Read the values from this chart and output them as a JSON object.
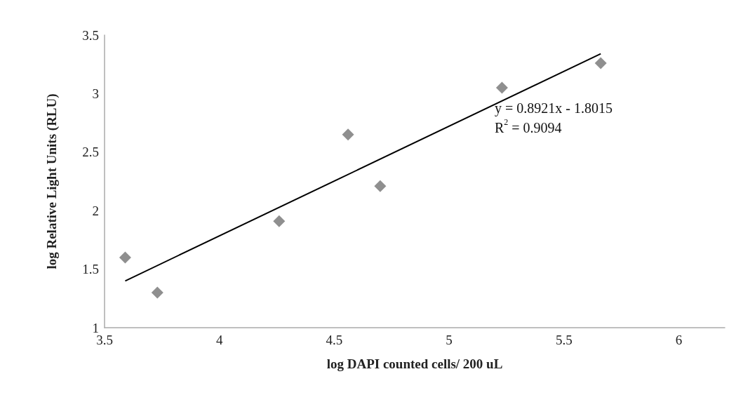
{
  "chart_data": {
    "type": "scatter",
    "xlabel": "log DAPI counted cells/ 200 uL",
    "ylabel": "log Relative Light Units (RLU)",
    "xlim": [
      3.5,
      6.2
    ],
    "xticks": [
      3.5,
      4,
      4.5,
      5,
      5.5,
      6
    ],
    "ylim": [
      1,
      3.5
    ],
    "yticks": [
      1,
      1.5,
      2,
      2.5,
      3,
      3.5
    ],
    "grid": false,
    "series": [
      {
        "color": "#737373",
        "marker": "diamond",
        "x": [
          3.59,
          3.73,
          4.26,
          4.56,
          4.7,
          5.23,
          5.66
        ],
        "values": [
          1.6,
          1.3,
          1.91,
          2.65,
          2.21,
          3.05,
          3.26
        ]
      },
      {
        "type": "line",
        "color": "#000000",
        "marker": "none",
        "line_style": "solid",
        "x": [
          3.59,
          5.66
        ],
        "values": [
          1.4,
          3.34
        ]
      }
    ],
    "annotations": [
      "y = 0.8921x - 1.8015\nR$^{2}$ = 0.9094"
    ]
  }
}
